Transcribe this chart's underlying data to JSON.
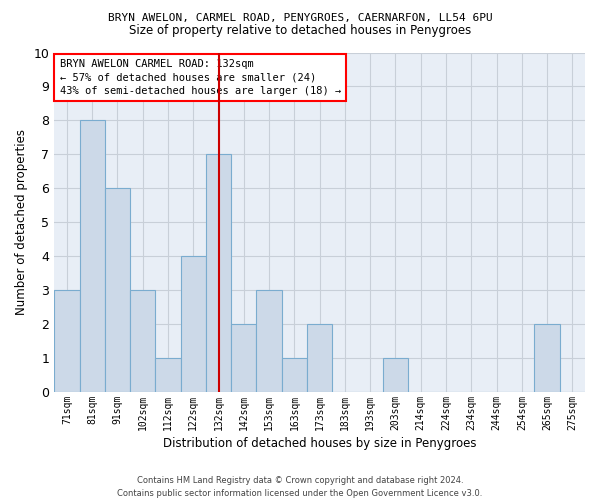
{
  "title1": "BRYN AWELON, CARMEL ROAD, PENYGROES, CAERNARFON, LL54 6PU",
  "title2": "Size of property relative to detached houses in Penygroes",
  "xlabel": "Distribution of detached houses by size in Penygroes",
  "ylabel": "Number of detached properties",
  "categories": [
    "71sqm",
    "81sqm",
    "91sqm",
    "102sqm",
    "112sqm",
    "122sqm",
    "132sqm",
    "142sqm",
    "153sqm",
    "163sqm",
    "173sqm",
    "183sqm",
    "193sqm",
    "203sqm",
    "214sqm",
    "224sqm",
    "234sqm",
    "244sqm",
    "254sqm",
    "265sqm",
    "275sqm"
  ],
  "values": [
    3,
    8,
    6,
    3,
    1,
    4,
    7,
    2,
    3,
    1,
    2,
    0,
    0,
    1,
    0,
    0,
    0,
    0,
    0,
    2,
    0
  ],
  "bar_color": "#ccd9e8",
  "bar_edge_color": "#7aaccf",
  "highlight_index": 6,
  "highlight_color": "#cc0000",
  "annotation_line1": "BRYN AWELON CARMEL ROAD: 132sqm",
  "annotation_line2": "← 57% of detached houses are smaller (24)",
  "annotation_line3": "43% of semi-detached houses are larger (18) →",
  "ylim": [
    0,
    10
  ],
  "yticks": [
    0,
    1,
    2,
    3,
    4,
    5,
    6,
    7,
    8,
    9,
    10
  ],
  "footer1": "Contains HM Land Registry data © Crown copyright and database right 2024.",
  "footer2": "Contains public sector information licensed under the Open Government Licence v3.0.",
  "background_color": "#ffffff",
  "plot_bg_color": "#e8eef6",
  "grid_color": "#c8cfd8"
}
